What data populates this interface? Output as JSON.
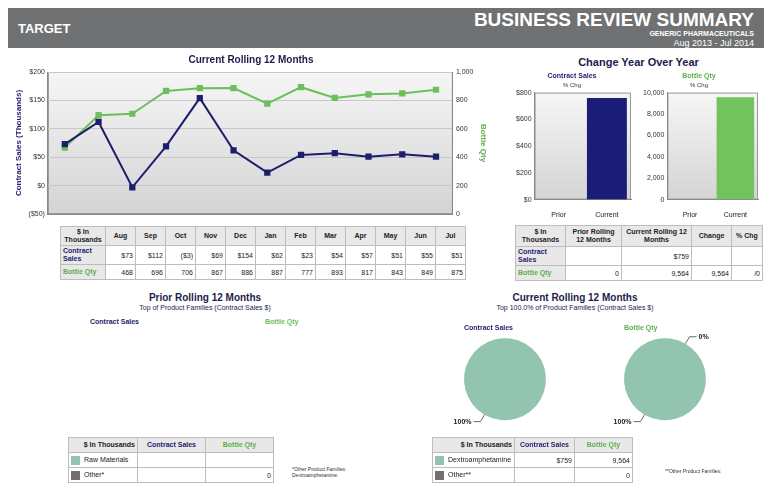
{
  "header": {
    "left": "TARGET",
    "title": "BUSINESS REVIEW SUMMARY",
    "subtitle": "GENERIC PHARMACEUTICALS",
    "period": "Aug 2013 - Jul 2014"
  },
  "chart_data": [
    {
      "type": "line",
      "title": "Current Rolling 12 Months",
      "y_label": "Contract Sales (Thousands)",
      "y2_label": "Bottle Qty",
      "categories": [
        "Aug",
        "Sep",
        "Oct",
        "Nov",
        "Dec",
        "Jan",
        "Feb",
        "Mar",
        "Apr",
        "May",
        "Jun",
        "Jul"
      ],
      "series": [
        {
          "name": "Contract Sales",
          "color": "#1e1e6e",
          "marker": "square",
          "values": [
            73,
            112,
            -3,
            69,
            154,
            62,
            23,
            54,
            57,
            51,
            55,
            51
          ]
        },
        {
          "name": "Bottle Qty",
          "color": "#6cbf5c",
          "marker": "square",
          "axis": "y2",
          "values": [
            468,
            696,
            706,
            867,
            886,
            887,
            777,
            893,
            817,
            843,
            849,
            875
          ]
        }
      ],
      "ylim": [
        -50,
        200
      ],
      "yticks": [
        {
          "value": -50,
          "label": "($50)"
        },
        {
          "value": 0,
          "label": "$0"
        },
        {
          "value": 50,
          "label": "$50"
        },
        {
          "value": 100,
          "label": "$100"
        },
        {
          "value": 150,
          "label": "$150"
        },
        {
          "value": 200,
          "label": "$200"
        }
      ],
      "y2lim": [
        0,
        1000
      ],
      "y2ticks": [
        0,
        200,
        400,
        600,
        800,
        {
          "value": 1000,
          "label": "1,000"
        }
      ],
      "grid": true,
      "tick_labels": "y"
    },
    {
      "type": "bar",
      "title": "Contract Sales",
      "subtitle": "% Chg",
      "categories": [
        "Prior",
        "Current"
      ],
      "values": [
        null,
        759
      ],
      "color": "#1b1b78",
      "ylim": [
        0,
        800
      ],
      "yticks": [
        {
          "value": 0,
          "label": "$0"
        },
        {
          "value": 200,
          "label": "$200"
        },
        {
          "value": 400,
          "label": "$400"
        },
        {
          "value": 600,
          "label": "$600"
        },
        {
          "value": 800,
          "label": "$800"
        }
      ],
      "grid": false
    },
    {
      "type": "bar",
      "title": "Bottle Qty",
      "subtitle": "% Chg",
      "categories": [
        "Prior",
        "Current"
      ],
      "values": [
        0,
        9564
      ],
      "color": "#72c35e",
      "ylim": [
        0,
        10000
      ],
      "yticks": [
        0,
        {
          "value": 2000,
          "label": "2,000"
        },
        {
          "value": 4000,
          "label": "4,000"
        },
        {
          "value": 6000,
          "label": "6,000"
        },
        {
          "value": 8000,
          "label": "8,000"
        },
        {
          "value": 10000,
          "label": "10,000"
        }
      ],
      "grid": false
    },
    {
      "type": "pie",
      "title": "Contract Sales",
      "categories": [
        "Dextroamphetamine"
      ],
      "values": [
        100
      ],
      "value_labels": [
        "100%"
      ],
      "colors": [
        "#93c4b0"
      ]
    },
    {
      "type": "pie",
      "title": "Bottle Qty",
      "categories": [
        "Dextroamphetamine",
        "Other**"
      ],
      "values": [
        100,
        0
      ],
      "value_labels": [
        "100%",
        "0%"
      ],
      "colors": [
        "#93c4b0",
        "#707070"
      ]
    }
  ],
  "rolling_table": {
    "header": [
      "$ In Thousands",
      "Aug",
      "Sep",
      "Oct",
      "Nov",
      "Dec",
      "Jan",
      "Feb",
      "Mar",
      "Apr",
      "May",
      "Jun",
      "Jul"
    ],
    "rows": [
      [
        "Contract Sales",
        "$73",
        "$112",
        "($3)",
        "$69",
        "$154",
        "$62",
        "$23",
        "$54",
        "$57",
        "$51",
        "$55",
        "$51"
      ],
      [
        "Bottle Qty",
        "468",
        "696",
        "706",
        "867",
        "886",
        "887",
        "777",
        "893",
        "817",
        "843",
        "849",
        "875"
      ]
    ]
  },
  "change": {
    "title": "Change Year Over Year",
    "table": {
      "header": [
        "$ In Thousands",
        "Prior Rolling 12 Months",
        "Current Rolling 12 Months",
        "Change",
        "% Chg"
      ],
      "rows": [
        [
          "Contract Sales",
          null,
          "$759",
          null,
          null
        ],
        [
          "Bottle Qty",
          "0",
          "9,564",
          "9,564",
          "/0"
        ]
      ]
    }
  },
  "prior": {
    "title": "Prior Rolling 12 Months",
    "subtitle": "Top  of Product Families (Contract Sales $)",
    "labels": [
      "Contract Sales",
      "Bottle Qty"
    ],
    "table": {
      "header": [
        "$ In Thousands",
        "Contract Sales",
        "Bottle Qty"
      ],
      "rows": [
        [
          "Raw Materials",
          null,
          null
        ],
        [
          "Other*",
          null,
          "0"
        ]
      ]
    },
    "note": "*Other Product Families: Dextroamphetamine."
  },
  "current": {
    "title": "Current Rolling 12 Months",
    "subtitle": "Top 100.0% of Product Families (Contract Sales $)",
    "table": {
      "header": [
        "$ In Thousands",
        "Contract Sales",
        "Bottle Qty"
      ],
      "rows": [
        [
          "Dextroamphetamine",
          "$759",
          "9,564"
        ],
        [
          "Other**",
          null,
          "0"
        ]
      ]
    },
    "note": "**Other Product Families:"
  }
}
